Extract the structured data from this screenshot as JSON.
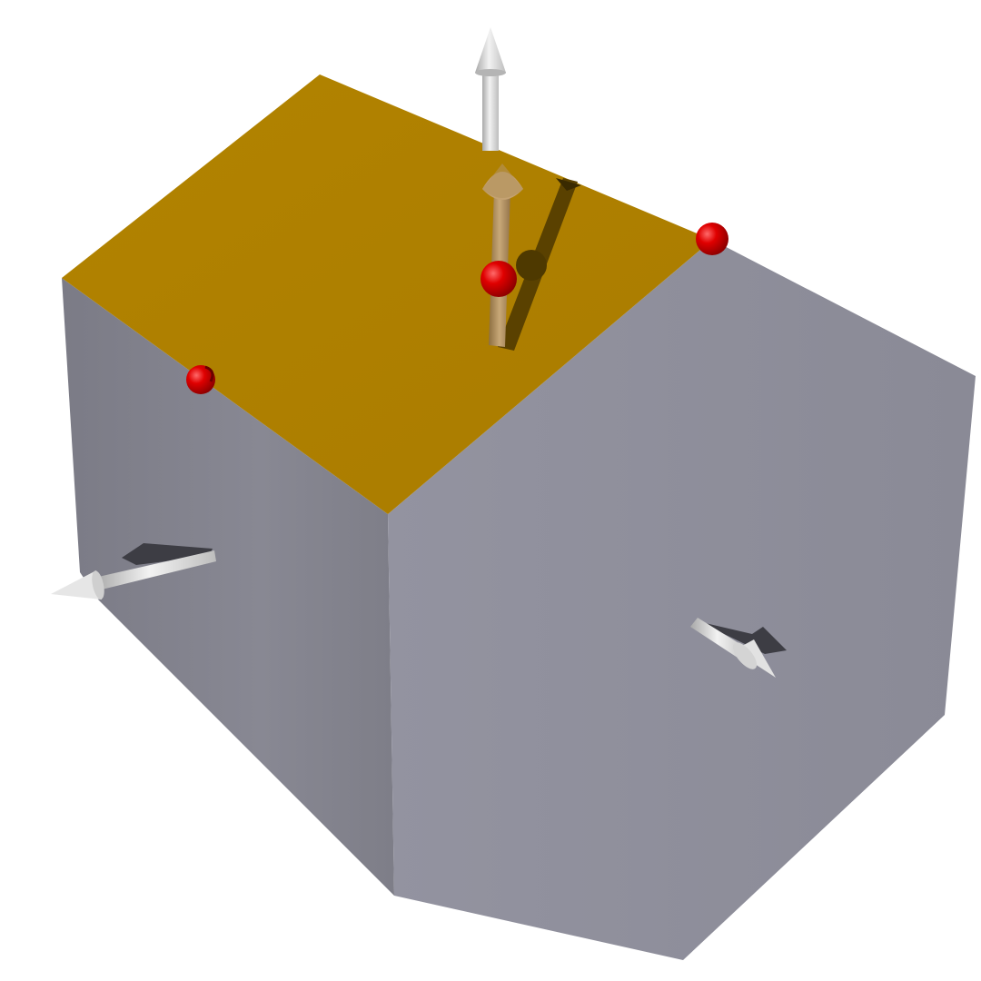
{
  "scene": {
    "description": "",
    "colors": {
      "background": "#ffffff",
      "top_face": "#ae7f00",
      "top_face_light": "#b58400",
      "left_face": "#84848e",
      "left_face_dark": "#7a7a84",
      "right_face": "#8e8e99",
      "right_face_light": "#9494a0",
      "arrow_light": "#eeeeee",
      "arrow_mid": "#c9c9c9",
      "arrow_dark": "#9a9a9a",
      "arrow_shadow": "#3d3d44",
      "tan_arrow": "#b89868",
      "tan_arrow_dark": "#7a6038",
      "top_shadow": "#5e4400",
      "point_red": "#e00000",
      "point_red_dark": "#8a0000"
    },
    "elements": [
      "cube-mesh",
      "normal-arrow-top",
      "normal-arrow-left",
      "normal-arrow-right",
      "selected-normal-arrow",
      "red-vertex-points"
    ]
  }
}
